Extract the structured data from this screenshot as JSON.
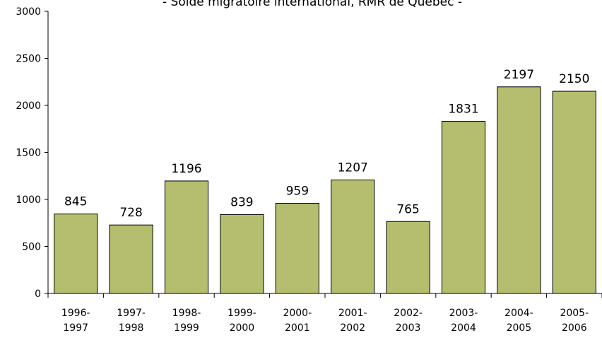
{
  "chart_data": {
    "type": "bar",
    "title": "- Solde migratoire international, RMR de Québec -",
    "categories": [
      [
        "1996-",
        "1997"
      ],
      [
        "1997-",
        "1998"
      ],
      [
        "1998-",
        "1999"
      ],
      [
        "1999-",
        "2000"
      ],
      [
        "2000-",
        "2001"
      ],
      [
        "2001-",
        "2002"
      ],
      [
        "2002-",
        "2003"
      ],
      [
        "2003-",
        "2004"
      ],
      [
        "2004-",
        "2005"
      ],
      [
        "2005-",
        "2006"
      ]
    ],
    "values": [
      845,
      728,
      1196,
      839,
      959,
      1207,
      765,
      1831,
      2197,
      2150
    ],
    "color": "#b5bd6e",
    "ylim": [
      0,
      3000
    ],
    "yticks": [
      0,
      500,
      1000,
      1500,
      2000,
      2500,
      3000
    ],
    "grid": false
  }
}
